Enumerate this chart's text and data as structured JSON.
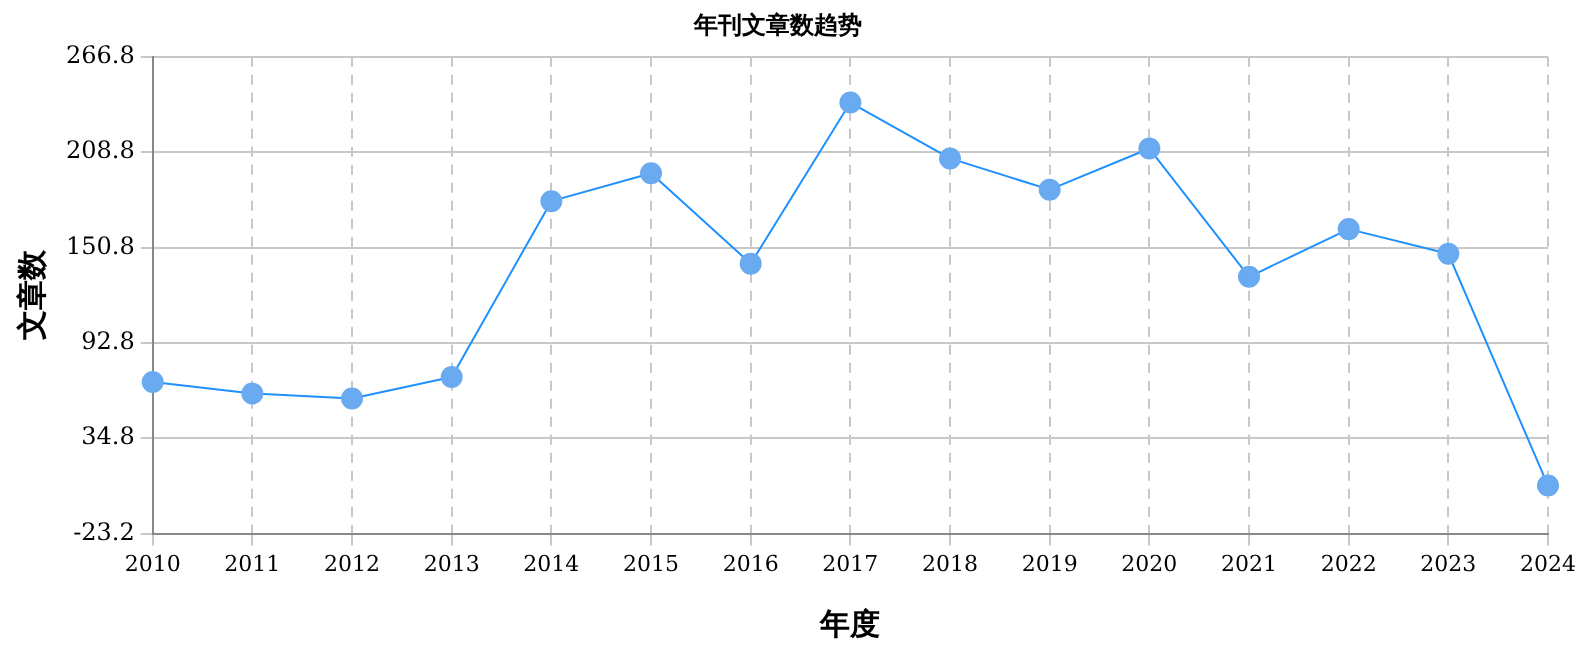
{
  "chart_data": {
    "type": "line",
    "title": "年刊文章数趋势",
    "xlabel": "年度",
    "ylabel": "文章数",
    "categories": [
      "2010",
      "2011",
      "2012",
      "2013",
      "2014",
      "2015",
      "2016",
      "2017",
      "2018",
      "2019",
      "2020",
      "2021",
      "2022",
      "2023",
      "2024"
    ],
    "series": [
      {
        "color": "#1e90ff",
        "values": [
          69,
          62,
          59,
          72,
          179,
          196,
          141,
          239,
          205,
          186,
          211,
          133,
          162,
          147,
          6
        ]
      }
    ],
    "ylim": [
      -23.2,
      266.8
    ],
    "yticks": [
      {
        "value": -23.2,
        "label": "-23.2"
      },
      {
        "value": 34.8,
        "label": "34.8"
      },
      {
        "value": 92.8,
        "label": "92.8"
      },
      {
        "value": 150.8,
        "label": "150.8"
      },
      {
        "value": 208.8,
        "label": "208.8"
      },
      {
        "value": 266.8,
        "label": "266.8"
      }
    ],
    "grid": true,
    "legend": false,
    "marker": "circle",
    "line_style": "solid"
  }
}
